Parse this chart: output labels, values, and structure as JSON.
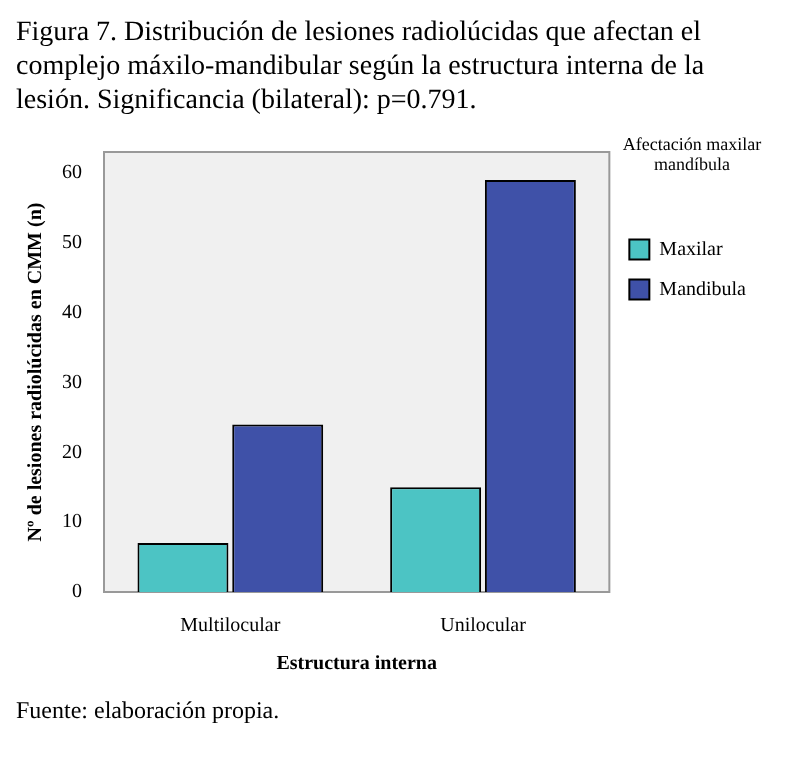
{
  "chart_data": {
    "type": "bar",
    "title": "Figura 7. Distribución de lesiones radiolúcidas que afectan el complejo máxilo-mandibular según la estructura interna de la lesión. Significancia (bilateral): p=0.791.",
    "xlabel": "Estructura interna",
    "ylabel": "Nº de lesiones radiolúcidas en CMM (n)",
    "legend_title": "Afectación maxilar mandíbula",
    "categories": [
      "Multilocular",
      "Unilocular"
    ],
    "series": [
      {
        "name": "Maxilar",
        "color": "#4cc4c4",
        "values": [
          7,
          15
        ]
      },
      {
        "name": "Mandibula",
        "color": "#3f51a8",
        "values": [
          24,
          59
        ]
      }
    ],
    "ylim": [
      0,
      63
    ],
    "yticks": [
      0,
      10,
      20,
      30,
      40,
      50,
      60
    ],
    "grid": false,
    "legend": "top right",
    "annotations": [
      "Fuente: elaboración propia."
    ]
  }
}
